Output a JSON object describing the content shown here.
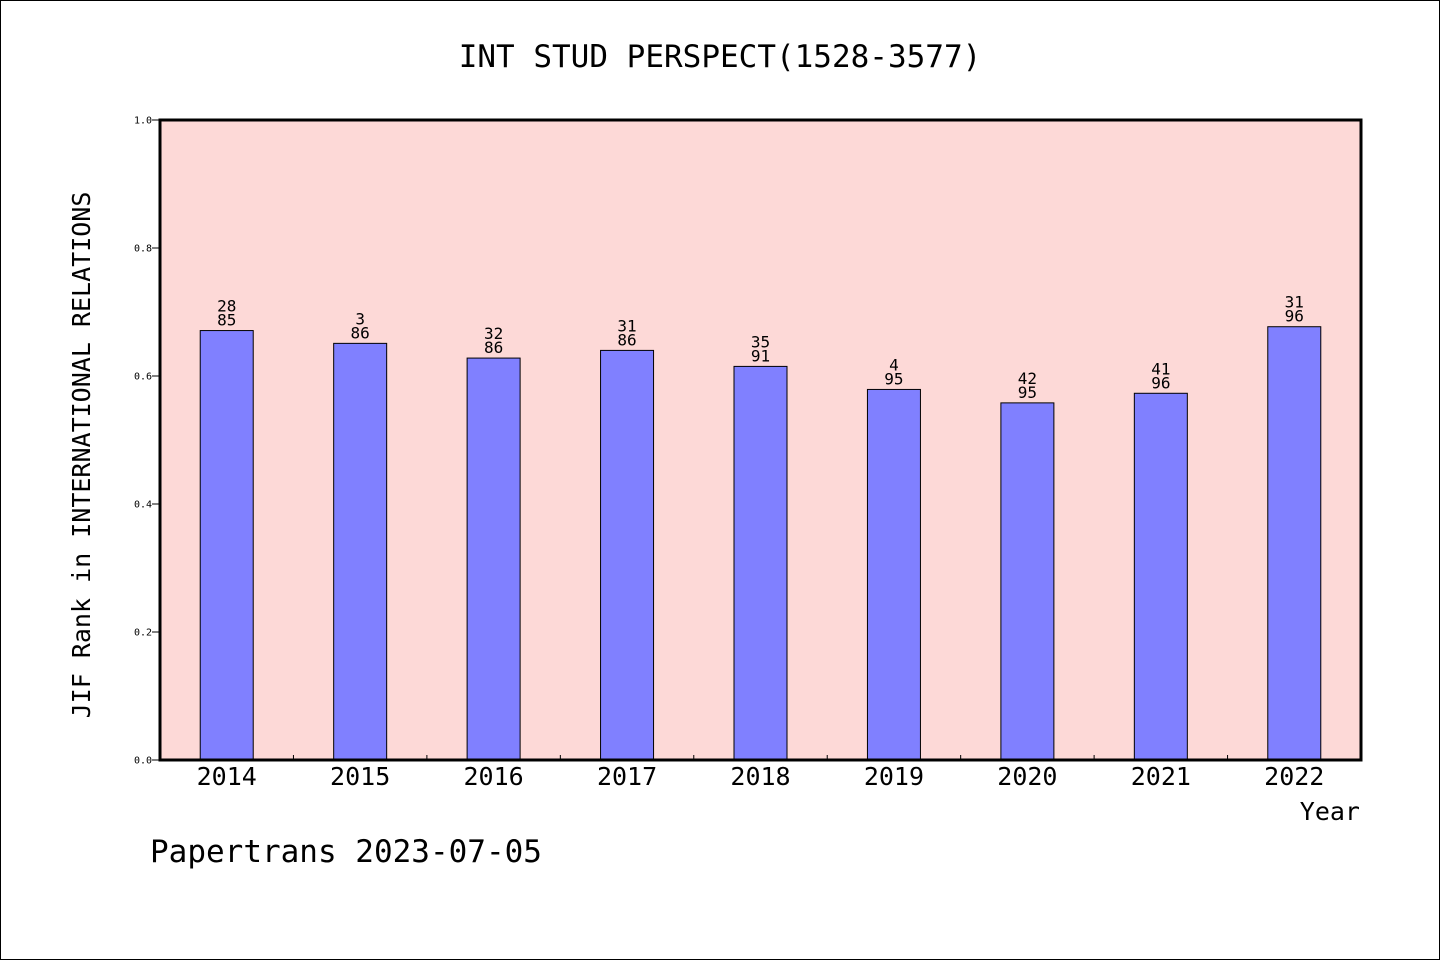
{
  "footer": {
    "credit": "Papertrans 2023-07-05"
  },
  "colors": {
    "plot_background": "#fdd9d7",
    "bar_fill": "#8080ff",
    "bar_stroke": "#000000",
    "text": "#000000"
  },
  "chart_data": {
    "type": "bar",
    "title": "INT STUD PERSPECT(1528-3577)",
    "xlabel": "Year",
    "ylabel": "JIF Rank in INTERNATIONAL RELATIONS",
    "ylim": [
      0,
      1
    ],
    "yticks": [
      "0.0",
      "0.2",
      "0.4",
      "0.6",
      "0.8",
      "1.0"
    ],
    "categories": [
      "2014",
      "2015",
      "2016",
      "2017",
      "2018",
      "2019",
      "2020",
      "2021",
      "2022"
    ],
    "values": [
      0.671,
      0.651,
      0.628,
      0.64,
      0.615,
      0.579,
      0.558,
      0.573,
      0.677
    ],
    "labels_top": [
      "28",
      "3",
      "32",
      "31",
      "35",
      "4",
      "42",
      "41",
      "31"
    ],
    "labels_bottom": [
      "85",
      "86",
      "86",
      "86",
      "91",
      "95",
      "95",
      "96",
      "96"
    ],
    "grid": false,
    "legend": "none"
  }
}
